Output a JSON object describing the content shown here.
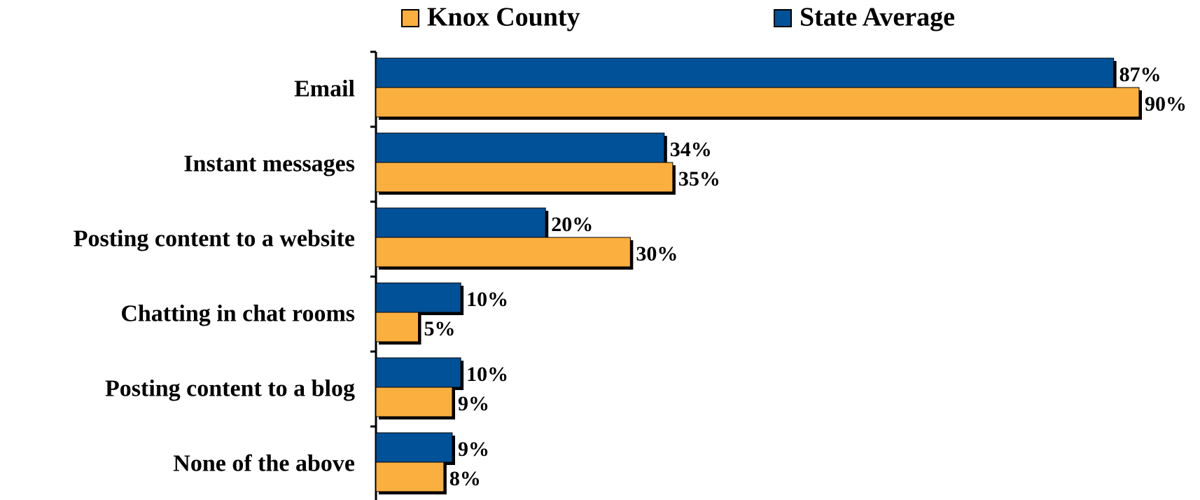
{
  "chart_data": {
    "type": "bar",
    "orientation": "horizontal",
    "categories": [
      "Email",
      "Instant messages",
      "Posting content to a website",
      "Chatting in chat rooms",
      "Posting content to a blog",
      "None of the above"
    ],
    "series": [
      {
        "name": "Knox County",
        "color": "#FBAF3F",
        "values": [
          90,
          35,
          30,
          5,
          9,
          8
        ],
        "value_labels": [
          "90%",
          "35%",
          "30%",
          "5%",
          "9%",
          "8%"
        ]
      },
      {
        "name": "State Average",
        "color": "#005197",
        "values": [
          87,
          34,
          20,
          10,
          10,
          9
        ],
        "value_labels": [
          "87%",
          "34%",
          "20%",
          "10%",
          "10%",
          "9%"
        ]
      }
    ],
    "legend": "top"
  }
}
